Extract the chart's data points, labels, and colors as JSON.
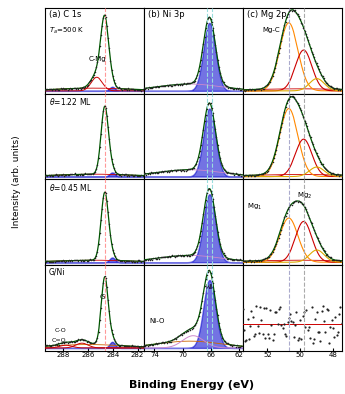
{
  "xlabel": "Binding Energy (eV)",
  "ylabel": "Intensity (arb. units)",
  "panel_labels": [
    "(a) C 1s",
    "(b) Ni 3p",
    "(c) Mg 2p"
  ],
  "col_a_xlim": [
    289.5,
    281.5
  ],
  "col_b_xlim": [
    75.5,
    61.5
  ],
  "col_c_xlim": [
    53.5,
    47.5
  ],
  "vline_a_color": "#ff9999",
  "vline_b_color": "#99dddd",
  "vline_c1_color": "#aaaaaa",
  "vline_c2_color": "#aaaacc",
  "dot_color": "#222222",
  "envelope_color": "#005500",
  "red_bg_color": "#cc0000",
  "blue_fill_color": "#0000cc",
  "orange_color": "#ff8800",
  "yellow_color": "#ddaa00",
  "pink_color": "#cc88cc",
  "background_color": "#ffffff",
  "border_color": "#000000",
  "c1s_vline": 284.65,
  "ni3p_vline1": 65.8,
  "ni3p_vline2": 66.5,
  "mg2p_vline1": 49.8,
  "mg2p_vline2": 50.7
}
